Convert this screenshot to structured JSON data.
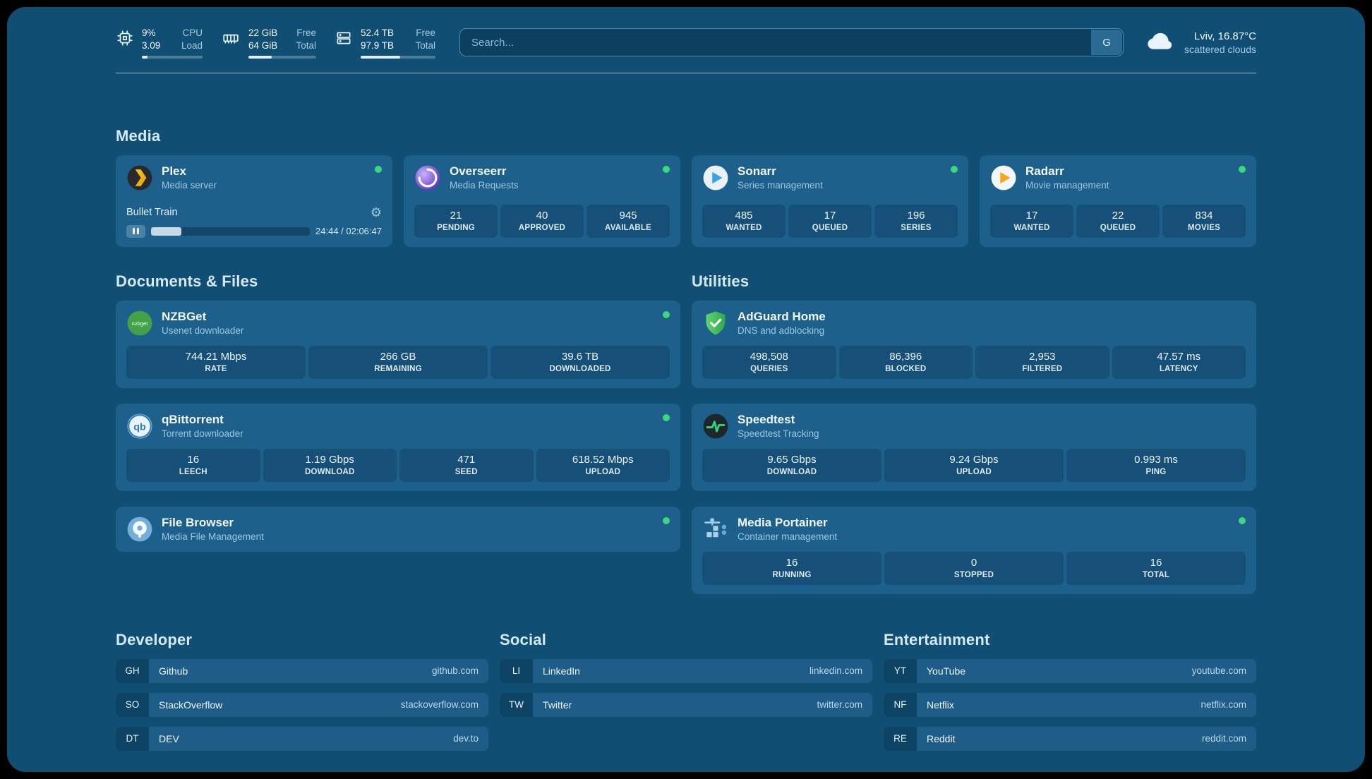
{
  "topbar": {
    "cpu": {
      "value_top": "9%",
      "value_bottom": "3.09",
      "label_top": "CPU",
      "label_bottom": "Load",
      "progress_percent": 9
    },
    "memory": {
      "value_top": "22 GiB",
      "value_bottom": "64 GiB",
      "label_top": "Free",
      "label_bottom": "Total",
      "progress_percent": 34
    },
    "storage": {
      "value_top": "52.4 TB",
      "value_bottom": "97.9 TB",
      "label_top": "Free",
      "label_bottom": "Total",
      "progress_percent": 53
    },
    "search": {
      "placeholder": "Search...",
      "engine_label": "G"
    },
    "weather": {
      "location": "Lviv, 16.87°C",
      "condition": "scattered clouds"
    }
  },
  "sections": {
    "media": "Media",
    "documents": "Documents & Files",
    "utilities": "Utilities",
    "developer": "Developer",
    "social": "Social",
    "entertainment": "Entertainment"
  },
  "apps": {
    "plex": {
      "name": "Plex",
      "subtitle": "Media server",
      "now_playing": "Bullet Train",
      "time": "24:44 / 02:06:47",
      "progress_percent": 19
    },
    "overseerr": {
      "name": "Overseerr",
      "subtitle": "Media Requests",
      "stats": [
        {
          "value": "21",
          "label": "PENDING"
        },
        {
          "value": "40",
          "label": "APPROVED"
        },
        {
          "value": "945",
          "label": "AVAILABLE"
        }
      ]
    },
    "sonarr": {
      "name": "Sonarr",
      "subtitle": "Series management",
      "stats": [
        {
          "value": "485",
          "label": "WANTED"
        },
        {
          "value": "17",
          "label": "QUEUED"
        },
        {
          "value": "196",
          "label": "SERIES"
        }
      ]
    },
    "radarr": {
      "name": "Radarr",
      "subtitle": "Movie management",
      "stats": [
        {
          "value": "17",
          "label": "WANTED"
        },
        {
          "value": "22",
          "label": "QUEUED"
        },
        {
          "value": "834",
          "label": "MOVIES"
        }
      ]
    },
    "nzbget": {
      "name": "NZBGet",
      "subtitle": "Usenet downloader",
      "icon_text": "nzbget",
      "stats": [
        {
          "value": "744.21 Mbps",
          "label": "RATE"
        },
        {
          "value": "266 GB",
          "label": "REMAINING"
        },
        {
          "value": "39.6 TB",
          "label": "DOWNLOADED"
        }
      ]
    },
    "qbittorrent": {
      "name": "qBittorrent",
      "subtitle": "Torrent downloader",
      "icon_text": "qb",
      "stats": [
        {
          "value": "16",
          "label": "LEECH"
        },
        {
          "value": "1.19 Gbps",
          "label": "DOWNLOAD"
        },
        {
          "value": "471",
          "label": "SEED"
        },
        {
          "value": "618.52 Mbps",
          "label": "UPLOAD"
        }
      ]
    },
    "filebrowser": {
      "name": "File Browser",
      "subtitle": "Media File Management"
    },
    "adguard": {
      "name": "AdGuard Home",
      "subtitle": "DNS and adblocking",
      "stats": [
        {
          "value": "498,508",
          "label": "QUERIES"
        },
        {
          "value": "86,396",
          "label": "BLOCKED"
        },
        {
          "value": "2,953",
          "label": "FILTERED"
        },
        {
          "value": "47.57 ms",
          "label": "LATENCY"
        }
      ]
    },
    "speedtest": {
      "name": "Speedtest",
      "subtitle": "Speedtest Tracking",
      "stats": [
        {
          "value": "9.65 Gbps",
          "label": "DOWNLOAD"
        },
        {
          "value": "9.24 Gbps",
          "label": "UPLOAD"
        },
        {
          "value": "0.993 ms",
          "label": "PING"
        }
      ]
    },
    "portainer": {
      "name": "Media Portainer",
      "subtitle": "Container management",
      "stats": [
        {
          "value": "16",
          "label": "RUNNING"
        },
        {
          "value": "0",
          "label": "STOPPED"
        },
        {
          "value": "16",
          "label": "TOTAL"
        }
      ]
    }
  },
  "bookmarks": {
    "developer": [
      {
        "abbr": "GH",
        "name": "Github",
        "url": "github.com"
      },
      {
        "abbr": "SO",
        "name": "StackOverflow",
        "url": "stackoverflow.com"
      },
      {
        "abbr": "DT",
        "name": "DEV",
        "url": "dev.to"
      }
    ],
    "social": [
      {
        "abbr": "LI",
        "name": "LinkedIn",
        "url": "linkedin.com"
      },
      {
        "abbr": "TW",
        "name": "Twitter",
        "url": "twitter.com"
      }
    ],
    "entertainment": [
      {
        "abbr": "YT",
        "name": "YouTube",
        "url": "youtube.com"
      },
      {
        "abbr": "NF",
        "name": "Netflix",
        "url": "netflix.com"
      },
      {
        "abbr": "RE",
        "name": "Reddit",
        "url": "reddit.com"
      }
    ]
  },
  "colors": {
    "background": "#114E73",
    "card": "#1E608C",
    "stat_box": "#164F78",
    "status_online": "#3FD67E",
    "heading_text": "#D5EAF8"
  }
}
